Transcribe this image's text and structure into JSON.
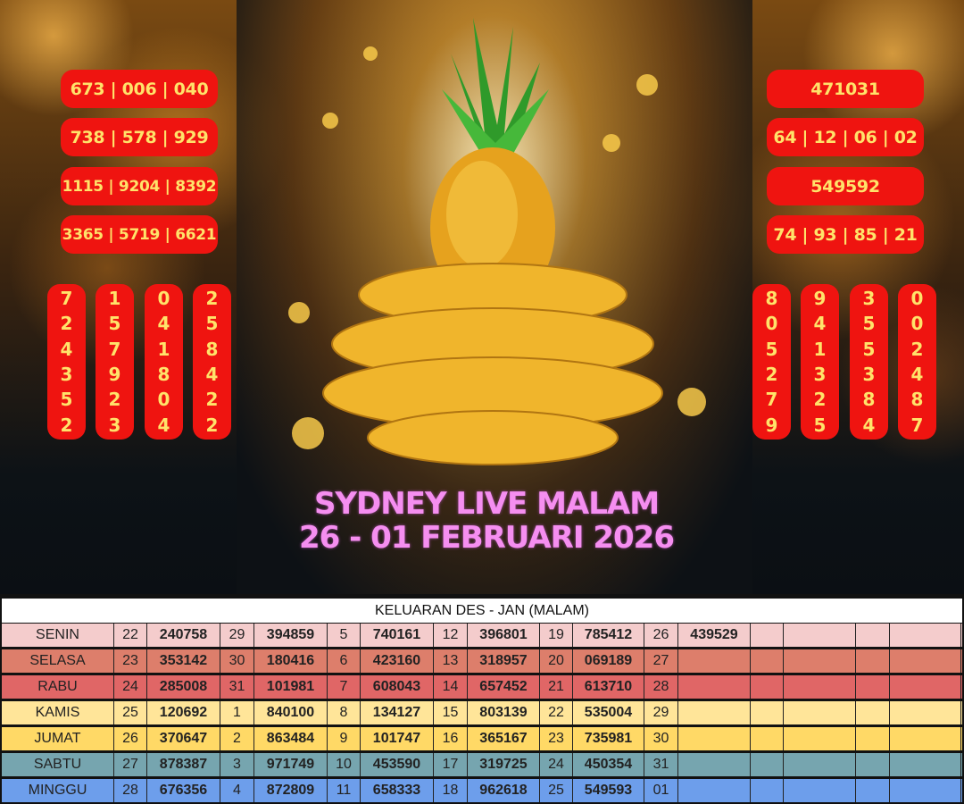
{
  "left_pills": [
    "673 | 006 | 040",
    "738 | 578 | 929",
    "1115 | 9204 | 8392",
    "3365 | 5719 | 6621"
  ],
  "left_columns": [
    [
      "7",
      "2",
      "4",
      "3",
      "5",
      "2"
    ],
    [
      "1",
      "5",
      "7",
      "9",
      "2",
      "3"
    ],
    [
      "0",
      "4",
      "1",
      "8",
      "0",
      "4"
    ],
    [
      "2",
      "5",
      "8",
      "4",
      "2",
      "2"
    ]
  ],
  "right_pills": [
    "471031",
    "64 | 12 | 06 | 02",
    "549592",
    "74 | 93 | 85 | 21"
  ],
  "right_columns": [
    [
      "8",
      "0",
      "5",
      "2",
      "7",
      "9"
    ],
    [
      "9",
      "4",
      "1",
      "3",
      "2",
      "5"
    ],
    [
      "3",
      "5",
      "5",
      "3",
      "8",
      "4"
    ],
    [
      "0",
      "0",
      "2",
      "4",
      "8",
      "7"
    ]
  ],
  "title": {
    "line1": "SYDNEY LIVE MALAM",
    "line2": "26 - 01 FEBRUARI 2026"
  },
  "colors": {
    "pill": "#ef1410",
    "pill_text": "#ffe36a",
    "title": "#f58ef0"
  },
  "table": {
    "header": "KELUARAN DES - JAN (MALAM)",
    "rows": [
      {
        "day": "SENIN",
        "color": "#f4cccc",
        "cells": [
          "22",
          "240758",
          "29",
          "394859",
          "5",
          "740161",
          "12",
          "396801",
          "19",
          "785412",
          "26",
          "439529",
          "",
          "",
          "",
          ""
        ]
      },
      {
        "day": "SELASA",
        "color": "#dd7e6b",
        "cells": [
          "23",
          "353142",
          "30",
          "180416",
          "6",
          "423160",
          "13",
          "318957",
          "20",
          "069189",
          "27",
          "",
          "",
          "",
          "",
          ""
        ]
      },
      {
        "day": "RABU",
        "color": "#e06666",
        "cells": [
          "24",
          "285008",
          "31",
          "101981",
          "7",
          "608043",
          "14",
          "657452",
          "21",
          "613710",
          "28",
          "",
          "",
          "",
          "",
          ""
        ]
      },
      {
        "day": "KAMIS",
        "color": "#ffe599",
        "cells": [
          "25",
          "120692",
          "1",
          "840100",
          "8",
          "134127",
          "15",
          "803139",
          "22",
          "535004",
          "29",
          "",
          "",
          "",
          "",
          ""
        ]
      },
      {
        "day": "JUMAT",
        "color": "#ffd966",
        "cells": [
          "26",
          "370647",
          "2",
          "863484",
          "9",
          "101747",
          "16",
          "365167",
          "23",
          "735981",
          "30",
          "",
          "",
          "",
          "",
          ""
        ]
      },
      {
        "day": "SABTU",
        "color": "#76a5af",
        "cells": [
          "27",
          "878387",
          "3",
          "971749",
          "10",
          "453590",
          "17",
          "319725",
          "24",
          "450354",
          "31",
          "",
          "",
          "",
          "",
          ""
        ]
      },
      {
        "day": "MINGGU",
        "color": "#6d9eeb",
        "cells": [
          "28",
          "676356",
          "4",
          "872809",
          "11",
          "658333",
          "18",
          "962618",
          "25",
          "549593",
          "01",
          "",
          "",
          "",
          "",
          ""
        ]
      }
    ]
  }
}
